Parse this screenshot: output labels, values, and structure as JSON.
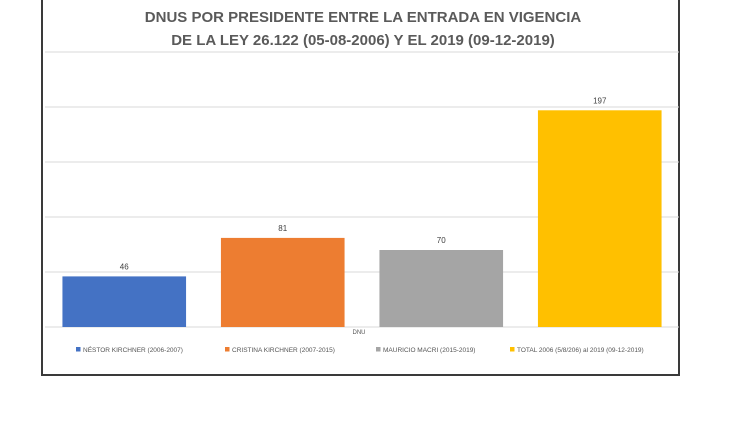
{
  "chart_data": {
    "type": "bar",
    "title_lines": [
      "DNUS POR PRESIDENTE ENTRE LA ENTRADA EN VIGENCIA",
      "DE LA LEY 26.122 (05-08-2006) Y EL 2019 (09-12-2019)"
    ],
    "xlabel": "DNU",
    "ylim": [
      0,
      250
    ],
    "grid": true,
    "legend_position": "bottom",
    "series": [
      {
        "name": "NÉSTOR KIRCHNER (2006-2007)",
        "value": 46,
        "color": "#4472c4"
      },
      {
        "name": "CRISTINA KIRCHNER (2007-2015)",
        "value": 81,
        "color": "#ed7d31"
      },
      {
        "name": "MAURICIO MACRI (2015-2019)",
        "value": 70,
        "color": "#a5a5a5"
      },
      {
        "name": "TOTAL 2006 (5/8/206) al 2019 (09-12-2019)",
        "value": 197,
        "color": "#ffc000"
      }
    ]
  }
}
